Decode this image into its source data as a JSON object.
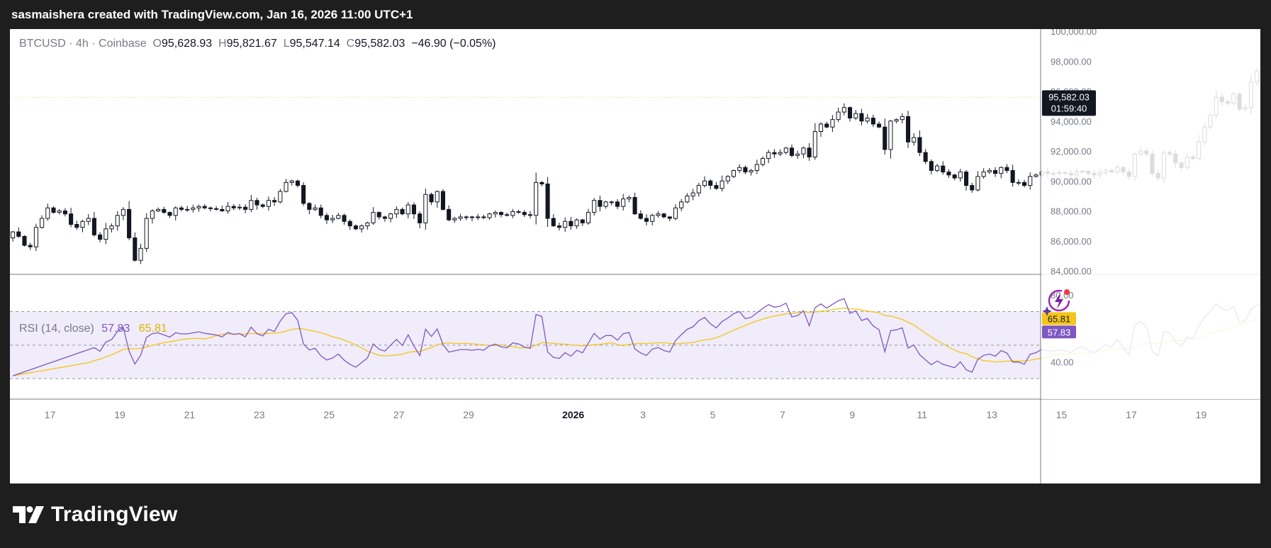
{
  "header": {
    "caption": "sasmaishera created with TradingView.com, Jan 16, 2026 11:00 UTC+1"
  },
  "legend": {
    "symbol": "BTCUSD · 4h · Coinbase",
    "o_label": "O",
    "o_value": "95,628.93",
    "h_label": "H",
    "h_value": "95,821.67",
    "l_label": "L",
    "l_value": "95,547.14",
    "c_label": "C",
    "c_value": "95,582.03",
    "change": "−46.90 (−0.05%)"
  },
  "price_badge": {
    "price": "95,582.03",
    "countdown": "01:59:40"
  },
  "rsi_legend": {
    "label": "RSI (14, close)",
    "rsi_value": "57.83",
    "ma_value": "65.81"
  },
  "rsi_badges": {
    "ma": "65.81",
    "rsi": "57.83"
  },
  "brand": {
    "name": "TradingView"
  },
  "colors": {
    "up": "#ffffff",
    "down": "#131722",
    "wick": "#131722",
    "rsi": "#7e57c2",
    "rsi_ma": "#f5c518",
    "band_fill": "#f0ecf9",
    "last_price": "#f5d565",
    "page_bg": "#1e1e1e"
  },
  "chart_data": [
    {
      "type": "candlestick",
      "symbol": "BTCUSD",
      "interval": "4h",
      "y_ticks": [
        "84,000.00",
        "86,000.00",
        "88,000.00",
        "90,000.00",
        "92,000.00",
        "94,000.00",
        "96,000.00",
        "98,000.00",
        "100,000.00"
      ],
      "ylim": [
        84000,
        100000
      ],
      "x_ticks": [
        "17",
        "19",
        "21",
        "23",
        "25",
        "27",
        "29",
        "2026",
        "3",
        "5",
        "7",
        "9",
        "11",
        "13",
        "15",
        "17",
        "19"
      ],
      "x_tick_days": [
        17,
        19,
        21,
        23,
        25,
        27,
        29,
        32,
        34,
        36,
        38,
        40,
        42,
        44,
        46,
        48,
        50
      ],
      "x_start_day": 15.85,
      "x_end_day": 51.7,
      "bars_per_day": 6,
      "closes": [
        86600,
        86300,
        85700,
        85600,
        86900,
        87500,
        88200,
        87900,
        88000,
        87800,
        87100,
        86900,
        87300,
        87500,
        86400,
        86100,
        86800,
        87000,
        87700,
        88100,
        86200,
        84700,
        85500,
        87500,
        88000,
        88100,
        87900,
        87700,
        88200,
        88100,
        88100,
        88200,
        88300,
        88200,
        88150,
        88100,
        88000,
        88300,
        88200,
        88250,
        88100,
        88700,
        88400,
        88300,
        88700,
        88600,
        89300,
        89900,
        90000,
        89700,
        88500,
        88100,
        88200,
        87700,
        87400,
        87500,
        87700,
        87300,
        87000,
        86800,
        87000,
        87200,
        87900,
        87600,
        87500,
        87800,
        88100,
        87800,
        88400,
        87800,
        87200,
        89100,
        88600,
        89300,
        88100,
        87400,
        87500,
        87600,
        87600,
        87550,
        87600,
        87550,
        87800,
        87900,
        87750,
        87700,
        87950,
        87900,
        87750,
        87700,
        89900,
        89800,
        87500,
        87000,
        86900,
        87300,
        87000,
        87400,
        87200,
        87900,
        88700,
        88300,
        88600,
        88600,
        88300,
        88800,
        88900,
        87800,
        87500,
        87300,
        87700,
        87800,
        87600,
        87500,
        88200,
        88600,
        89000,
        89200,
        89700,
        90000,
        89700,
        89500,
        90000,
        90300,
        90700,
        90900,
        90600,
        90700,
        91100,
        91500,
        91900,
        91800,
        91900,
        92200,
        91700,
        91800,
        92200,
        91600,
        93300,
        93800,
        93600,
        94100,
        94600,
        94900,
        94200,
        94500,
        94000,
        94200,
        93800,
        93600,
        92100,
        94000,
        94100,
        94300,
        92600,
        92900,
        91900,
        91300,
        90700,
        91000,
        90600,
        90400,
        90200,
        90600,
        89700,
        89400,
        90300,
        90600,
        90700,
        90500,
        90900,
        90700,
        89900,
        89900,
        89700,
        90300,
        90400,
        90600,
        90500,
        90500,
        90550,
        90500,
        90400,
        90600,
        90650,
        90500,
        90400,
        90550,
        90700,
        90600,
        90900,
        90600,
        90300,
        91800,
        92000,
        91800,
        90500,
        90200,
        91900,
        91800,
        91200,
        90900,
        91600,
        91500,
        92600,
        93600,
        94400,
        95600,
        95300,
        95200,
        95800,
        94800,
        94900,
        96600,
        97300,
        97700,
        97300,
        96600,
        96200,
        96900,
        96300,
        96200,
        96900,
        96200,
        95600,
        95400,
        95500,
        95600,
        95582.03
      ]
    },
    {
      "type": "line",
      "name": "RSI (14, close)",
      "ylim": [
        25,
        85
      ],
      "y_ticks": [
        "40.00",
        "80.00"
      ],
      "bands": [
        30,
        50,
        70
      ],
      "series": [
        {
          "name": "RSI",
          "last": 57.83
        },
        {
          "name": "RSI-based MA",
          "last": 65.81
        }
      ]
    }
  ]
}
